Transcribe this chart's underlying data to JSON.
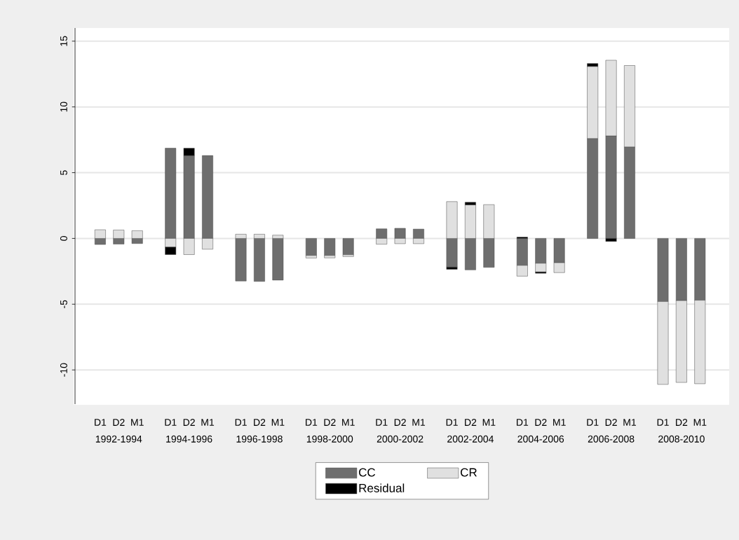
{
  "chart_data": {
    "type": "bar",
    "stacked": true,
    "categories": [
      "D1",
      "D2",
      "M1",
      "D1",
      "D2",
      "M1",
      "D1",
      "D2",
      "M1",
      "D1",
      "D2",
      "M1",
      "D1",
      "D2",
      "M1",
      "D1",
      "D2",
      "M1",
      "D1",
      "D2",
      "M1",
      "D1",
      "D2",
      "M1",
      "D1",
      "D2",
      "M1"
    ],
    "annotations": [
      "1992-1994",
      "1994-1996",
      "1996-1998",
      "1998-2000",
      "2000-2002",
      "2002-2004",
      "2004-2006",
      "2006-2008",
      "2008-2010"
    ],
    "series": [
      {
        "name": "CC",
        "color": "#6e6e6e",
        "values": [
          -0.46,
          -0.43,
          -0.39,
          6.86,
          6.3,
          6.3,
          -3.24,
          -3.27,
          -3.17,
          -1.3,
          -1.3,
          -1.24,
          0.73,
          0.77,
          0.71,
          -2.18,
          -2.39,
          -2.2,
          -2.05,
          -1.89,
          -1.85,
          7.6,
          7.8,
          6.96,
          -4.8,
          -4.73,
          -4.7
        ]
      },
      {
        "name": "CR",
        "color": "#e0e0e0",
        "values": [
          0.66,
          0.64,
          0.59,
          -0.66,
          -1.23,
          -0.82,
          0.32,
          0.32,
          0.25,
          -0.19,
          -0.18,
          -0.14,
          -0.44,
          -0.4,
          -0.4,
          2.8,
          2.55,
          2.57,
          -0.82,
          -0.66,
          -0.75,
          5.48,
          5.75,
          6.19,
          -6.3,
          -6.22,
          -6.35
        ]
      },
      {
        "name": "Residual",
        "color": "#000000",
        "values": [
          0,
          0,
          0,
          -0.57,
          0.56,
          0,
          0,
          0,
          0,
          0,
          0,
          0,
          0,
          0,
          0,
          -0.17,
          0.2,
          0,
          0.1,
          -0.1,
          0,
          0.22,
          -0.23,
          0,
          0,
          0,
          0
        ]
      }
    ],
    "ylim": [
      -12.6,
      16
    ],
    "yticks": [
      -10,
      -5,
      0,
      5,
      10,
      15
    ],
    "grid": "y",
    "legend": "bottom"
  }
}
